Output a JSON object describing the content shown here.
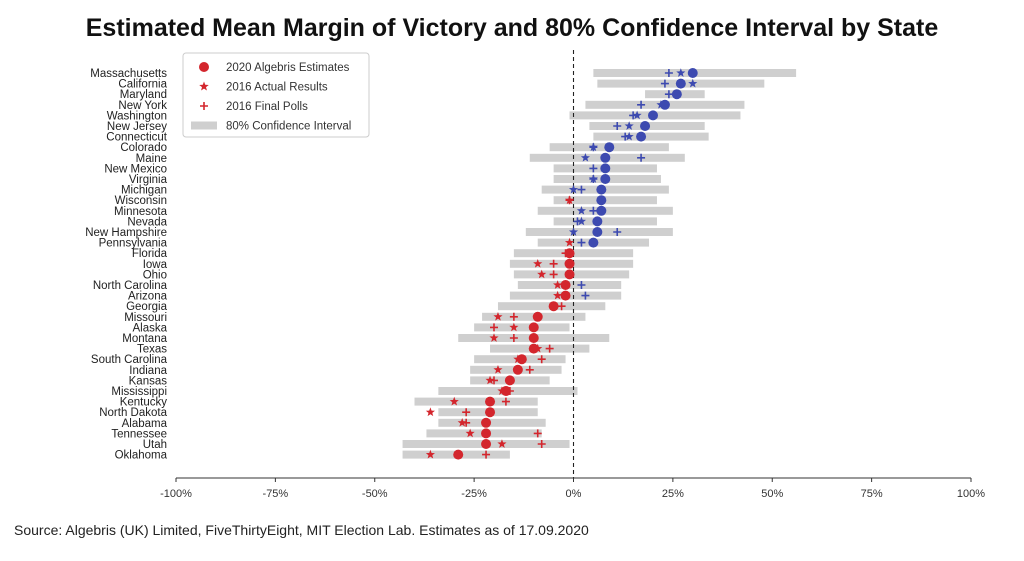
{
  "title": "Estimated Mean Margin of Victory and 80% Confidence Interval by State",
  "source": "Source: Algebris (UK) Limited, FiveThirtyEight, MIT Election Lab. Estimates as of 17.09.2020",
  "colors": {
    "dem": "#3d4ab0",
    "rep": "#d3262d",
    "ci": "#cfcfcf",
    "axis": "#333333"
  },
  "legend": [
    {
      "label": "2020 Algebris Estimates",
      "marker": "circle"
    },
    {
      "label": "2016 Actual Results",
      "marker": "star"
    },
    {
      "label": "2016 Final Polls",
      "marker": "plus"
    },
    {
      "label": "80% Confidence Interval",
      "marker": "bar"
    }
  ],
  "chart_data": {
    "type": "scatter",
    "title": "Estimated Mean Margin of Victory and 80% Confidence Interval by State",
    "xlim": [
      -100,
      100
    ],
    "xticks": [
      -100,
      -75,
      -50,
      -25,
      0,
      25,
      50,
      75,
      100
    ],
    "xtick_labels": [
      "-100%",
      "-75%",
      "-50%",
      "-25%",
      "0%",
      "25%",
      "50%",
      "75%",
      "100%"
    ],
    "grid": false,
    "legend_position": "top-left",
    "states": [
      "Massachusetts",
      "California",
      "Maryland",
      "New York",
      "Washington",
      "New Jersey",
      "Connecticut",
      "Colorado",
      "Maine",
      "New Mexico",
      "Virginia",
      "Michigan",
      "Wisconsin",
      "Minnesota",
      "Nevada",
      "New Hampshire",
      "Pennsylvania",
      "Florida",
      "Iowa",
      "Ohio",
      "North Carolina",
      "Arizona",
      "Georgia",
      "Missouri",
      "Alaska",
      "Montana",
      "Texas",
      "South Carolina",
      "Indiana",
      "Kansas",
      "Mississippi",
      "Kentucky",
      "North Dakota",
      "Alabama",
      "Tennessee",
      "Utah",
      "Oklahoma"
    ],
    "series": [
      {
        "name": "2020 Algebris Estimates",
        "values": [
          30,
          27,
          26,
          23,
          20,
          18,
          17,
          9,
          8,
          8,
          8,
          7,
          7,
          7,
          6,
          6,
          5,
          -1,
          -1,
          -1,
          -2,
          -2,
          -5,
          -9,
          -10,
          -10,
          -10,
          -13,
          -14,
          -16,
          -17,
          -21,
          -21,
          -22,
          -22,
          -22,
          -29
        ]
      },
      {
        "name": "2016 Actual Results",
        "values": [
          27,
          30,
          26,
          22,
          16,
          14,
          14,
          5,
          3,
          8,
          5,
          0,
          -1,
          2,
          2,
          0,
          -1,
          -1,
          -9,
          -8,
          -4,
          -4,
          -5,
          -19,
          -15,
          -20,
          -9,
          -14,
          -19,
          -21,
          -18,
          -30,
          -36,
          -28,
          -26,
          -18,
          -36
        ]
      },
      {
        "name": "2016 Final Polls",
        "values": [
          24,
          23,
          24,
          17,
          15,
          11,
          13,
          5,
          17,
          5,
          5,
          2,
          -1,
          5,
          1,
          11,
          2,
          -2,
          -5,
          -5,
          2,
          3,
          -3,
          -15,
          -20,
          -15,
          -6,
          -8,
          -11,
          -20,
          -16,
          -17,
          -27,
          -27,
          -9,
          -8,
          -22
        ]
      },
      {
        "name": "80% Confidence Interval",
        "low": [
          5,
          6,
          18,
          3,
          -1,
          4,
          5,
          -6,
          -11,
          -5,
          -5,
          -8,
          -5,
          -9,
          -5,
          -12,
          -9,
          -15,
          -16,
          -15,
          -14,
          -16,
          -19,
          -23,
          -25,
          -29,
          -21,
          -25,
          -26,
          -26,
          -34,
          -40,
          -34,
          -34,
          -37,
          -43,
          -43
        ],
        "high": [
          56,
          48,
          33,
          43,
          42,
          33,
          34,
          24,
          28,
          21,
          22,
          24,
          21,
          25,
          21,
          25,
          19,
          15,
          15,
          14,
          12,
          12,
          8,
          3,
          -1,
          9,
          4,
          -2,
          -3,
          -6,
          1,
          -9,
          -9,
          -7,
          -8,
          -1,
          -16
        ]
      }
    ]
  }
}
